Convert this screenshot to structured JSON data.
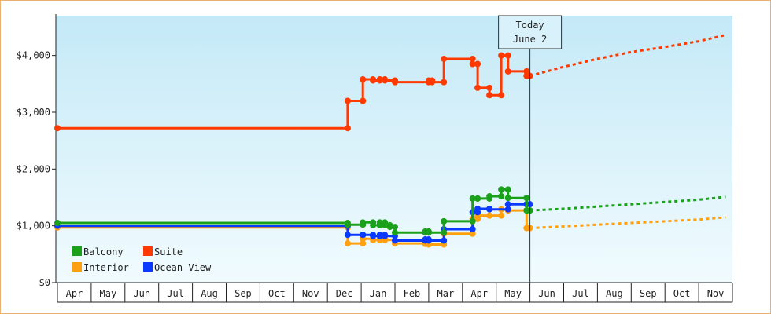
{
  "chart_data": {
    "type": "line",
    "title": "",
    "xlabel": "",
    "ylabel": "",
    "months": [
      "Apr",
      "May",
      "Jun",
      "Jul",
      "Aug",
      "Sep",
      "Oct",
      "Nov",
      "Dec",
      "Jan",
      "Feb",
      "Mar",
      "Apr",
      "May",
      "Jun",
      "Jul",
      "Aug",
      "Sep",
      "Oct",
      "Nov"
    ],
    "y_ticks": [
      "$0",
      "$1,000",
      "$2,000",
      "$3,000",
      "$4,000"
    ],
    "ylim": [
      0,
      4700
    ],
    "grid": false,
    "legend_position": "bottom-left",
    "today_marker": {
      "line1": "Today",
      "line2": "June 2",
      "x": 14.0
    },
    "series": [
      {
        "name": "Suite",
        "color": "#ff3a00",
        "points": [
          [
            0.0,
            2720
          ],
          [
            8.6,
            2720
          ],
          [
            8.6,
            3200
          ],
          [
            9.05,
            3200
          ],
          [
            9.05,
            3580
          ],
          [
            9.35,
            3580
          ],
          [
            9.35,
            3560
          ],
          [
            9.55,
            3560
          ],
          [
            9.55,
            3580
          ],
          [
            9.7,
            3580
          ],
          [
            9.7,
            3560
          ],
          [
            10.0,
            3560
          ],
          [
            10.0,
            3530
          ],
          [
            11.0,
            3530
          ],
          [
            11.0,
            3560
          ],
          [
            11.1,
            3560
          ],
          [
            11.1,
            3530
          ],
          [
            11.45,
            3530
          ],
          [
            11.45,
            3940
          ],
          [
            12.3,
            3940
          ],
          [
            12.3,
            3850
          ],
          [
            12.45,
            3850
          ],
          [
            12.45,
            3430
          ],
          [
            12.8,
            3430
          ],
          [
            12.8,
            3300
          ],
          [
            13.15,
            3300
          ],
          [
            13.15,
            4000
          ],
          [
            13.35,
            4000
          ],
          [
            13.35,
            3720
          ],
          [
            13.9,
            3720
          ],
          [
            13.9,
            3640
          ],
          [
            14.0,
            3640
          ]
        ],
        "forecast": [
          [
            14.0,
            3640
          ],
          [
            15.0,
            3800
          ],
          [
            16.0,
            3940
          ],
          [
            17.0,
            4060
          ],
          [
            18.0,
            4150
          ],
          [
            19.0,
            4250
          ],
          [
            19.8,
            4360
          ]
        ]
      },
      {
        "name": "Balcony",
        "color": "#1aa01a",
        "points": [
          [
            0.0,
            1050
          ],
          [
            8.6,
            1050
          ],
          [
            8.6,
            1020
          ],
          [
            9.05,
            1020
          ],
          [
            9.05,
            1060
          ],
          [
            9.35,
            1060
          ],
          [
            9.35,
            1010
          ],
          [
            9.55,
            1010
          ],
          [
            9.55,
            1060
          ],
          [
            9.7,
            1060
          ],
          [
            9.7,
            1010
          ],
          [
            9.85,
            1010
          ],
          [
            9.85,
            980
          ],
          [
            10.0,
            980
          ],
          [
            10.0,
            880
          ],
          [
            10.9,
            880
          ],
          [
            10.9,
            900
          ],
          [
            11.0,
            900
          ],
          [
            11.0,
            880
          ],
          [
            11.45,
            880
          ],
          [
            11.45,
            1080
          ],
          [
            12.3,
            1080
          ],
          [
            12.3,
            1480
          ],
          [
            12.45,
            1480
          ],
          [
            12.45,
            1480
          ],
          [
            12.8,
            1480
          ],
          [
            12.8,
            1520
          ],
          [
            13.15,
            1520
          ],
          [
            13.15,
            1640
          ],
          [
            13.35,
            1640
          ],
          [
            13.35,
            1490
          ],
          [
            13.9,
            1490
          ],
          [
            13.9,
            1270
          ],
          [
            14.0,
            1270
          ]
        ],
        "forecast": [
          [
            14.0,
            1270
          ],
          [
            15.0,
            1300
          ],
          [
            16.0,
            1340
          ],
          [
            17.0,
            1380
          ],
          [
            18.0,
            1420
          ],
          [
            19.0,
            1460
          ],
          [
            19.8,
            1510
          ]
        ]
      },
      {
        "name": "Ocean View",
        "color": "#0a3aff",
        "points": [
          [
            0.0,
            1000
          ],
          [
            8.6,
            1000
          ],
          [
            8.6,
            840
          ],
          [
            9.05,
            840
          ],
          [
            9.05,
            840
          ],
          [
            9.35,
            840
          ],
          [
            9.35,
            820
          ],
          [
            9.55,
            820
          ],
          [
            9.55,
            840
          ],
          [
            9.7,
            840
          ],
          [
            9.7,
            820
          ],
          [
            10.0,
            820
          ],
          [
            10.0,
            740
          ],
          [
            10.9,
            740
          ],
          [
            10.9,
            760
          ],
          [
            11.0,
            760
          ],
          [
            11.0,
            740
          ],
          [
            11.45,
            740
          ],
          [
            11.45,
            940
          ],
          [
            12.3,
            940
          ],
          [
            12.3,
            1240
          ],
          [
            12.45,
            1240
          ],
          [
            12.45,
            1300
          ],
          [
            12.8,
            1300
          ],
          [
            12.8,
            1290
          ],
          [
            13.35,
            1290
          ],
          [
            13.35,
            1380
          ],
          [
            13.9,
            1380
          ],
          [
            13.9,
            1380
          ],
          [
            14.0,
            1380
          ]
        ],
        "forecast": []
      },
      {
        "name": "Interior",
        "color": "#ffa010",
        "points": [
          [
            0.0,
            970
          ],
          [
            8.6,
            970
          ],
          [
            8.6,
            690
          ],
          [
            9.05,
            690
          ],
          [
            9.05,
            770
          ],
          [
            9.35,
            770
          ],
          [
            9.35,
            750
          ],
          [
            9.55,
            750
          ],
          [
            9.55,
            770
          ],
          [
            9.7,
            770
          ],
          [
            9.7,
            750
          ],
          [
            10.0,
            750
          ],
          [
            10.0,
            690
          ],
          [
            10.9,
            690
          ],
          [
            10.9,
            680
          ],
          [
            11.0,
            680
          ],
          [
            11.0,
            670
          ],
          [
            11.45,
            670
          ],
          [
            11.45,
            860
          ],
          [
            12.3,
            860
          ],
          [
            12.3,
            1120
          ],
          [
            12.45,
            1120
          ],
          [
            12.45,
            1180
          ],
          [
            12.8,
            1180
          ],
          [
            12.8,
            1180
          ],
          [
            13.15,
            1180
          ],
          [
            13.15,
            1290
          ],
          [
            13.35,
            1290
          ],
          [
            13.35,
            1270
          ],
          [
            13.9,
            1270
          ],
          [
            13.9,
            960
          ],
          [
            14.0,
            960
          ]
        ],
        "forecast": [
          [
            14.0,
            960
          ],
          [
            15.0,
            990
          ],
          [
            16.0,
            1020
          ],
          [
            17.0,
            1050
          ],
          [
            18.0,
            1080
          ],
          [
            19.0,
            1110
          ],
          [
            19.8,
            1150
          ]
        ]
      }
    ],
    "legend": [
      {
        "label": "Balcony",
        "color": "#1aa01a"
      },
      {
        "label": "Suite",
        "color": "#ff3a00"
      },
      {
        "label": "Interior",
        "color": "#ffa010"
      },
      {
        "label": "Ocean View",
        "color": "#0a3aff"
      }
    ]
  }
}
